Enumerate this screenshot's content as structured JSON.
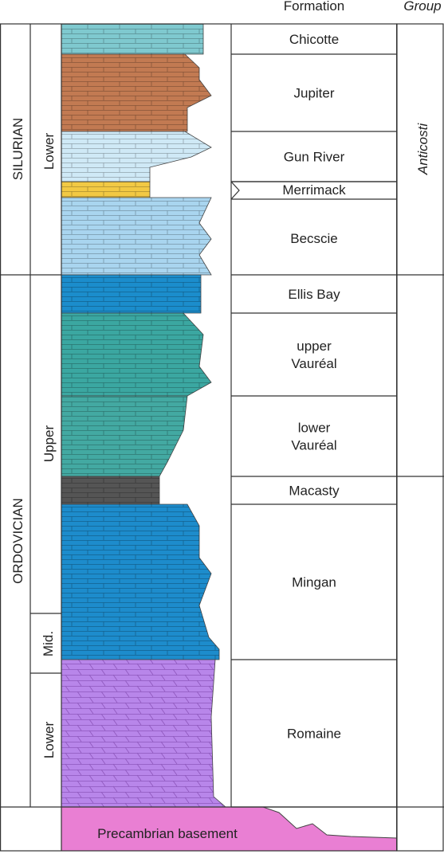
{
  "header": {
    "formation": "Formation",
    "group": "Group"
  },
  "systems": [
    "SILURIAN",
    "ORDOVICIAN"
  ],
  "series": [
    "Lower",
    "Upper",
    "Mid.",
    "Lower"
  ],
  "group": "Anticosti",
  "formations": [
    {
      "lines": [
        "Chicotte"
      ]
    },
    {
      "lines": [
        "Jupiter"
      ]
    },
    {
      "lines": [
        "Gun River"
      ]
    },
    {
      "lines": [
        "Merrimack"
      ]
    },
    {
      "lines": [
        "Becscie"
      ]
    },
    {
      "lines": [
        "Ellis Bay"
      ]
    },
    {
      "lines": [
        "upper",
        "Vauréal"
      ]
    },
    {
      "lines": [
        "lower",
        "Vauréal"
      ]
    },
    {
      "lines": [
        "Macasty"
      ]
    },
    {
      "lines": [
        "Mingan"
      ]
    },
    {
      "lines": [
        "Romaine"
      ]
    }
  ],
  "basement": "Precambrian basement"
}
